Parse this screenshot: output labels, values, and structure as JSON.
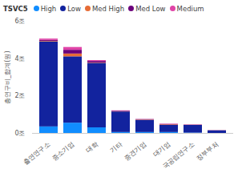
{
  "chart_data": {
    "type": "bar",
    "stacked": true,
    "legend_title": "TSVC5",
    "legend": "top",
    "ylabel": "총연구비_합계(원)",
    "categories": [
      "출연연구소",
      "중소기업",
      "대학",
      "기타",
      "중견기업",
      "대기업",
      "국공립연구소",
      "정부부처"
    ],
    "series": [
      {
        "name": "High",
        "color": "#118DFF",
        "values": [
          0.35,
          0.55,
          0.3,
          0.05,
          0.05,
          0.05,
          0.02,
          0
        ]
      },
      {
        "name": "Low",
        "color": "#12239E",
        "values": [
          4.55,
          3.55,
          3.45,
          1.1,
          0.65,
          0.38,
          0.41,
          0.14
        ]
      },
      {
        "name": "Med High",
        "color": "#E66C37",
        "values": [
          0.03,
          0.15,
          0.02,
          0.01,
          0.02,
          0.03,
          0.01,
          0.005
        ]
      },
      {
        "name": "Med Low",
        "color": "#6B007B",
        "values": [
          0.05,
          0.2,
          0.08,
          0.03,
          0.02,
          0.02,
          0.01,
          0.005
        ]
      },
      {
        "name": "Medium",
        "color": "#E044A7",
        "values": [
          0.07,
          0.15,
          0.05,
          0.02,
          0.01,
          0.02,
          0.01,
          0.005
        ]
      }
    ],
    "ylim": [
      0,
      6
    ],
    "yticks": [
      {
        "value": 0,
        "label": "0조"
      },
      {
        "value": 2,
        "label": "2조"
      },
      {
        "value": 4,
        "label": "4조"
      },
      {
        "value": 6,
        "label": "6조"
      }
    ],
    "grid": false
  }
}
